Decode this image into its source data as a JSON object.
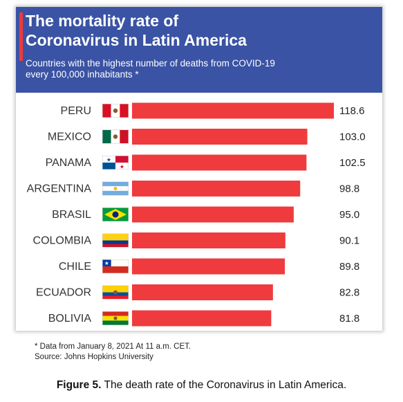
{
  "header": {
    "title_line1": "The mortality rate of",
    "title_line2": "Coronavirus in Latin America",
    "subtitle_line1": "Countries with the highest number of deaths from COVID-19",
    "subtitle_line2": "every 100,000 inhabitants *"
  },
  "chart_data": {
    "type": "bar",
    "orientation": "horizontal",
    "title": "The mortality rate of Coronavirus in Latin America",
    "subtitle": "Countries with the highest number of deaths from COVID-19 every 100,000 inhabitants *",
    "categories": [
      "PERU",
      "MEXICO",
      "PANAMA",
      "ARGENTINA",
      "BRASIL",
      "COLOMBIA",
      "CHILE",
      "ECUADOR",
      "BOLIVIA"
    ],
    "values": [
      118.6,
      103.0,
      102.5,
      98.8,
      95.0,
      90.1,
      89.8,
      82.8,
      81.8
    ],
    "labels": [
      "118.6",
      "103.0",
      "102.5",
      "98.8",
      "95.0",
      "90.1",
      "89.8",
      "82.8",
      "81.8"
    ],
    "bar_color": "#ef3b3d",
    "flag_icons": [
      "peru-flag-icon",
      "mexico-flag-icon",
      "panama-flag-icon",
      "argentina-flag-icon",
      "brazil-flag-icon",
      "colombia-flag-icon",
      "chile-flag-icon",
      "ecuador-flag-icon",
      "bolivia-flag-icon"
    ]
  },
  "footnote": {
    "line1": "* Data from January 8, 2021 At 11 a.m. CET.",
    "line2": "Source: Johns Hopkins University"
  },
  "caption": {
    "label": "Figure 5.",
    "text": " The death rate of the Coronavirus in Latin America."
  },
  "colors": {
    "header_bg": "#3a53a4",
    "accent": "#ee3a3c",
    "bar": "#ef3b3d"
  }
}
